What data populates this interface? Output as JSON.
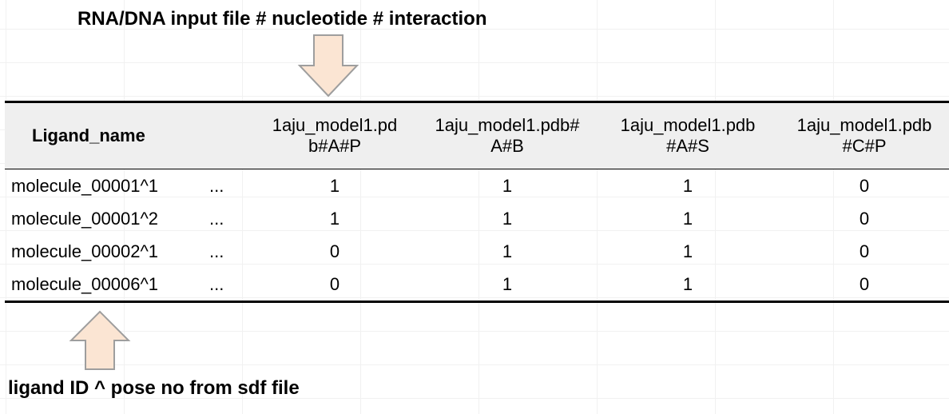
{
  "annotations": {
    "top": "RNA/DNA input file # nucleotide # interaction",
    "bottom": "ligand ID ^ pose no from sdf file"
  },
  "colors": {
    "arrow_fill": "#fbe5d3",
    "arrow_stroke": "#9e9e9e",
    "header_bg": "#efefef"
  },
  "table": {
    "ligand_header": "Ligand_name",
    "columns": [
      {
        "line1": "1aju_model1.pd",
        "line2": "b#A#P"
      },
      {
        "line1": "1aju_model1.pdb#",
        "line2": "A#B"
      },
      {
        "line1": "1aju_model1.pdb",
        "line2": "#A#S"
      },
      {
        "line1": "1aju_model1.pdb",
        "line2": "#C#P"
      }
    ],
    "rows": [
      {
        "name": "molecule_00001^1",
        "ellipsis": "...",
        "values": [
          "1",
          "1",
          "1",
          "0"
        ]
      },
      {
        "name": "molecule_00001^2",
        "ellipsis": "...",
        "values": [
          "1",
          "1",
          "1",
          "0"
        ]
      },
      {
        "name": "molecule_00002^1",
        "ellipsis": "...",
        "values": [
          "0",
          "1",
          "1",
          "0"
        ]
      },
      {
        "name": "molecule_00006^1",
        "ellipsis": "...",
        "values": [
          "0",
          "1",
          "1",
          "0"
        ]
      }
    ]
  }
}
